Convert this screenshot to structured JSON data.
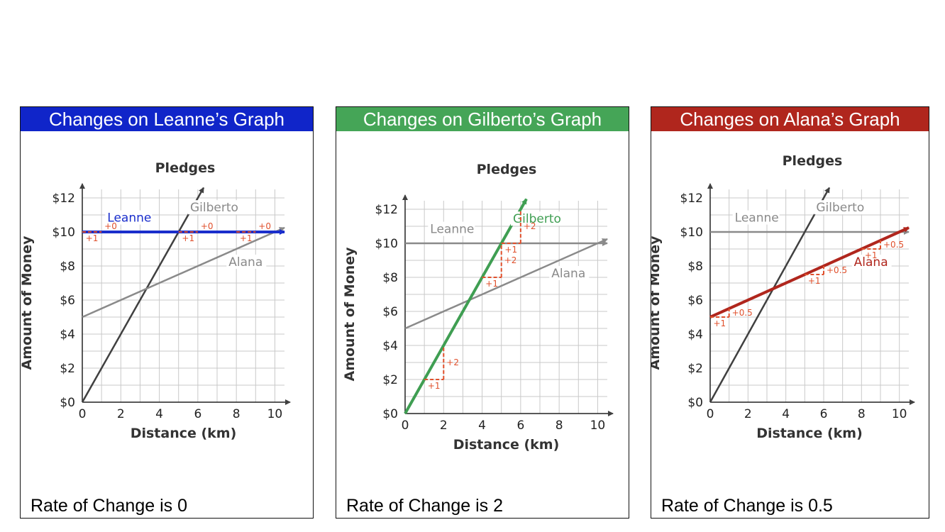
{
  "colors": {
    "leanne": "#1a2ecc",
    "gilberto": "#3f9e52",
    "alana": "#b0261d",
    "increment": "#e0502c",
    "gray": "#8a8a8a",
    "dark": "#404040"
  },
  "panels": [
    {
      "header": "Changes on Leanne’s Graph",
      "footer": "Rate of Change is 0",
      "header_color": "#1025c9",
      "highlight": "leanne"
    },
    {
      "header": "Changes on Gilberto’s Graph",
      "footer": "Rate of Change is 2",
      "header_color": "#45a557",
      "highlight": "gilberto"
    },
    {
      "header": "Changes on Alana’s Graph",
      "footer": "Rate of Change is 0.5",
      "header_color": "#b0261d",
      "highlight": "alana"
    }
  ],
  "chart_data": {
    "type": "line",
    "title": "Pledges",
    "xlabel": "Distance (km)",
    "ylabel": "Amount of Money",
    "xlim": [
      0,
      10.5
    ],
    "ylim": [
      0,
      12.5
    ],
    "x_ticks": [
      "0",
      "2",
      "4",
      "6",
      "8",
      "10"
    ],
    "y_ticks": [
      "$0",
      "$2",
      "$4",
      "$6",
      "$8",
      "$10",
      "$12"
    ],
    "grid": true,
    "series": [
      {
        "name": "Leanne",
        "key": "leanne",
        "x": [
          0,
          10.5
        ],
        "y": [
          10,
          10
        ]
      },
      {
        "name": "Gilberto",
        "key": "gilberto",
        "x": [
          0,
          6.3
        ],
        "y": [
          0,
          12.6
        ]
      },
      {
        "name": "Alana",
        "key": "alana",
        "x": [
          0,
          10.5
        ],
        "y": [
          5,
          10.25
        ]
      }
    ],
    "series_labels": [
      {
        "key": "leanne",
        "text": "Leanne"
      },
      {
        "key": "gilberto",
        "text": "Gilberto"
      },
      {
        "key": "alana",
        "text": "Alana"
      }
    ],
    "increment_annotations": {
      "leanne": [
        {
          "x": 0,
          "y": 10,
          "dx": 1,
          "dy": 0,
          "run": "+1",
          "rise": "+0"
        },
        {
          "x": 5,
          "y": 10,
          "dx": 1,
          "dy": 0,
          "run": "+1",
          "rise": "+0"
        },
        {
          "x": 8,
          "y": 10,
          "dx": 1,
          "dy": 0,
          "run": "+1",
          "rise": "+0"
        }
      ],
      "gilberto": [
        {
          "x": 1,
          "y": 2,
          "dx": 1,
          "dy": 2,
          "run": "+1",
          "rise": "+2"
        },
        {
          "x": 4,
          "y": 8,
          "dx": 1,
          "dy": 2,
          "run": "+1",
          "rise": "+2"
        },
        {
          "x": 5,
          "y": 10,
          "dx": 1,
          "dy": 2,
          "run": "+1",
          "rise": "+2"
        }
      ],
      "alana": [
        {
          "x": 0,
          "y": 5,
          "dx": 1,
          "dy": 0.5,
          "run": "+1",
          "rise": "+0.5"
        },
        {
          "x": 5,
          "y": 7.5,
          "dx": 1,
          "dy": 0.5,
          "run": "+1",
          "rise": "+0.5"
        },
        {
          "x": 8,
          "y": 9,
          "dx": 1,
          "dy": 0.5,
          "run": "+1",
          "rise": "+0.5"
        }
      ]
    }
  }
}
